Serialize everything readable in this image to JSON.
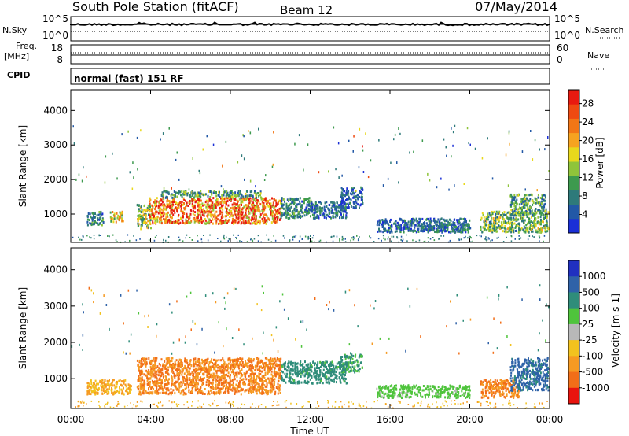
{
  "header": {
    "station": "South Pole Station (fitACF)",
    "beam": "Beam 12",
    "date": "07/May/2014"
  },
  "top_panels": {
    "noise": {
      "left_label": "N.Sky",
      "right_label": "N.Search",
      "left_ticks": [
        "10^5",
        "10^0"
      ],
      "right_ticks": [
        "10^5",
        "10^0"
      ]
    },
    "freq": {
      "left_label_1": "Freq.",
      "left_label_2": "[MHz]",
      "right_label": "Nave",
      "left_ticks": [
        "18",
        "8"
      ],
      "right_ticks": [
        "60",
        "0"
      ]
    },
    "cpid": {
      "label": "CPID",
      "text": "normal (fast) 151 RF"
    }
  },
  "chart_data": [
    {
      "type": "heatmap",
      "title": "Power",
      "ylabel": "Slant Range [km]",
      "xlabel": "",
      "x_range_hours": [
        0,
        24
      ],
      "ylim": [
        180,
        4600
      ],
      "y_ticks": [
        1000,
        2000,
        3000,
        4000
      ],
      "colorbar": {
        "label": "Power [dB]",
        "ticks": [
          4,
          8,
          12,
          16,
          20,
          24,
          28
        ],
        "range": [
          0,
          31
        ],
        "colors": [
          "#1a2fd6",
          "#2258a6",
          "#2e7a7a",
          "#3d9a4e",
          "#8fc43a",
          "#e8d81c",
          "#f6a320",
          "#f27616",
          "#ee4a12",
          "#e81a10"
        ]
      },
      "regions": [
        {
          "t": [
            0.8,
            1.6
          ],
          "r": [
            700,
            1100
          ],
          "v": 8
        },
        {
          "t": [
            1.9,
            2.6
          ],
          "r": [
            800,
            1100
          ],
          "v": 16
        },
        {
          "t": [
            3.3,
            4.0
          ],
          "r": [
            600,
            1300
          ],
          "v": 14
        },
        {
          "t": [
            3.9,
            10.5
          ],
          "r": [
            750,
            1500
          ],
          "v": 24
        },
        {
          "t": [
            4.5,
            9.5
          ],
          "r": [
            1500,
            1700
          ],
          "v": 10
        },
        {
          "t": [
            10.5,
            12.0
          ],
          "r": [
            900,
            1500
          ],
          "v": 8
        },
        {
          "t": [
            12.0,
            13.8
          ],
          "r": [
            900,
            1400
          ],
          "v": 6
        },
        {
          "t": [
            13.5,
            14.6
          ],
          "r": [
            1200,
            1800
          ],
          "v": 5
        },
        {
          "t": [
            15.3,
            20.0
          ],
          "r": [
            500,
            900
          ],
          "v": 6
        },
        {
          "t": [
            17.5,
            20.0
          ],
          "r": [
            500,
            750
          ],
          "v": 7
        },
        {
          "t": [
            20.5,
            23.9
          ],
          "r": [
            500,
            1100
          ],
          "v": 12
        },
        {
          "t": [
            22.0,
            23.8
          ],
          "r": [
            1000,
            1600
          ],
          "v": 10
        }
      ]
    },
    {
      "type": "heatmap",
      "title": "Velocity",
      "ylabel": "Slant Range [km]",
      "xlabel": "Time UT",
      "x_ticks": [
        "00:00",
        "04:00",
        "08:00",
        "12:00",
        "16:00",
        "20:00",
        "00:00"
      ],
      "x_range_hours": [
        0,
        24
      ],
      "ylim": [
        180,
        4600
      ],
      "y_ticks": [
        1000,
        2000,
        3000,
        4000
      ],
      "colorbar": {
        "label": "Velocity [m s-1]",
        "ticks": [
          "1000",
          "500",
          "100",
          "25",
          "-25",
          "-100",
          "-500",
          "-1000"
        ],
        "colors": [
          "#2030c0",
          "#2f62a8",
          "#2f8d7a",
          "#4fc43c",
          "#b8b8b8",
          "#f2c21e",
          "#f69a22",
          "#f26e18",
          "#e8140e"
        ]
      },
      "regions": [
        {
          "t": [
            0.8,
            3.0
          ],
          "r": [
            600,
            1000
          ],
          "v": -100
        },
        {
          "t": [
            3.3,
            10.5
          ],
          "r": [
            600,
            1600
          ],
          "v": -500
        },
        {
          "t": [
            10.5,
            13.8
          ],
          "r": [
            900,
            1500
          ],
          "v": 150
        },
        {
          "t": [
            13.5,
            14.6
          ],
          "r": [
            1200,
            1700
          ],
          "v": 120
        },
        {
          "t": [
            15.3,
            20.0
          ],
          "r": [
            500,
            850
          ],
          "v": 40
        },
        {
          "t": [
            20.5,
            22.5
          ],
          "r": [
            500,
            1000
          ],
          "v": -500
        },
        {
          "t": [
            22.0,
            23.9
          ],
          "r": [
            700,
            1600
          ],
          "v": 600
        }
      ]
    }
  ]
}
